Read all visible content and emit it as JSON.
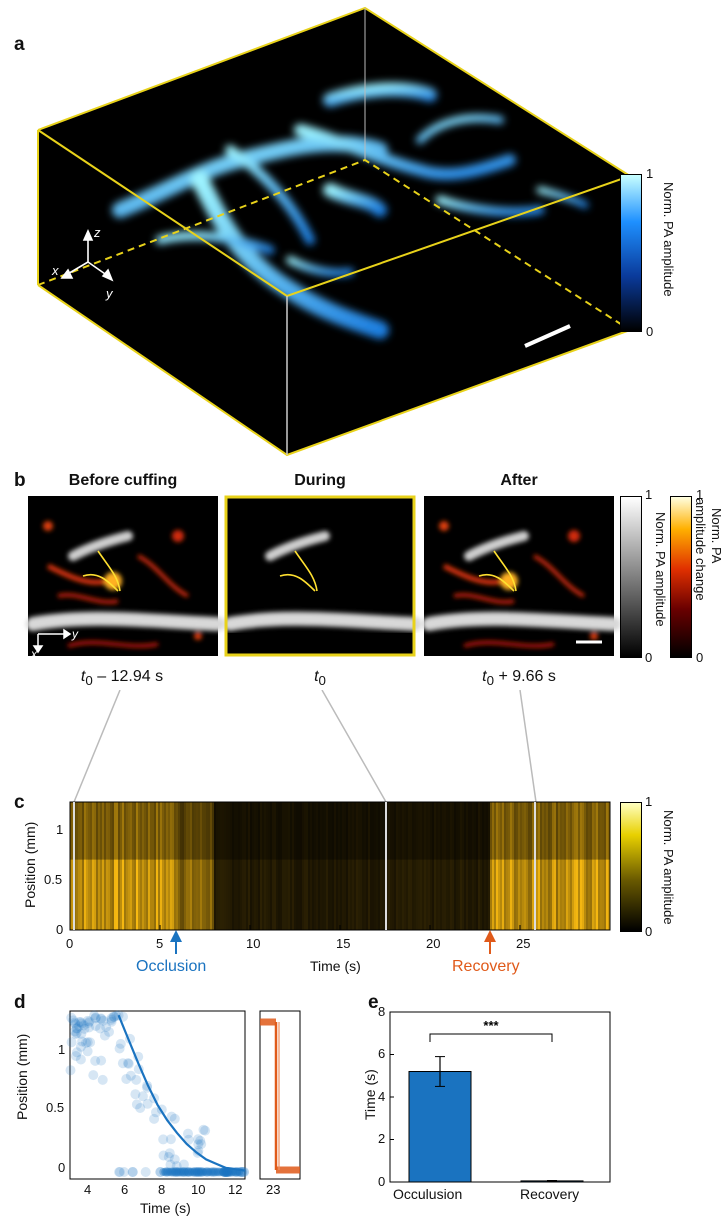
{
  "panels": {
    "a": "a",
    "b": "b",
    "c": "c",
    "d": "d",
    "e": "e"
  },
  "panel_a": {
    "axes": {
      "z": "z",
      "x": "x",
      "y": "y"
    },
    "colorbar": {
      "max": "1",
      "min": "0",
      "label": "Norm. PA amplitude",
      "colors": [
        "#000000",
        "#0a3a9a",
        "#1e90ff",
        "#c8ffff"
      ]
    },
    "box_color": "#e8d21a"
  },
  "panel_b": {
    "titles": [
      "Before cuffing",
      "During",
      "After"
    ],
    "time_labels": [
      {
        "t": "t",
        "sub": "0",
        "rest": " – 12.94 s"
      },
      {
        "t": "t",
        "sub": "0",
        "rest": ""
      },
      {
        "t": "t",
        "sub": "0",
        "rest": " + 9.66 s"
      }
    ],
    "axes": {
      "x": "x",
      "y": "y"
    },
    "colorbar_gray": {
      "max": "1",
      "min": "0",
      "label": "Norm. PA amplitude"
    },
    "colorbar_hot": {
      "max": "1",
      "min": "0",
      "label_line1": "Norm. PA",
      "label_line2": "amplitude change"
    }
  },
  "panel_c": {
    "ylabel": "Position (mm)",
    "xlabel": "Time (s)",
    "yticks": [
      "1",
      "0.5",
      "0"
    ],
    "xticks": [
      "0",
      "5",
      "10",
      "15",
      "20",
      "25"
    ],
    "colorbar": {
      "max": "1",
      "min": "0",
      "label": "Norm. PA amplitude"
    },
    "annotations": [
      {
        "label": "Occlusion",
        "color": "#1a73c0"
      },
      {
        "label": "Recovery",
        "color": "#e05a1a"
      }
    ]
  },
  "chart_data": [
    {
      "type": "heatmap",
      "description": "Norm. PA amplitude vs time and position",
      "xlabel": "Time (s)",
      "ylabel": "Position (mm)",
      "xlim": [
        0,
        30
      ],
      "ylim": [
        0,
        1.1
      ],
      "occlusion_time": 5.3,
      "recovery_time": 23.3,
      "intensity_segments": [
        {
          "t0": 0,
          "t1": 8,
          "level": 0.85
        },
        {
          "t0": 8,
          "t1": 23.3,
          "level": 0.15
        },
        {
          "t0": 23.3,
          "t1": 30,
          "level": 0.85
        }
      ]
    },
    {
      "type": "scatter",
      "xlabel": "Time (s)",
      "ylabel": "Position (mm)",
      "xlim": [
        3,
        12
      ],
      "ylim": [
        -0.05,
        1.15
      ],
      "xticks": [
        "4",
        "6",
        "8",
        "10",
        "12"
      ],
      "yticks": [
        "1",
        "0.5",
        "0"
      ],
      "series": [
        {
          "color": "#1a73c0",
          "fit": [
            [
              5.5,
              1.12
            ],
            [
              6,
              0.95
            ],
            [
              6.5,
              0.78
            ],
            [
              7,
              0.62
            ],
            [
              7.5,
              0.48
            ],
            [
              8,
              0.37
            ],
            [
              8.5,
              0.28
            ],
            [
              9,
              0.2
            ],
            [
              9.5,
              0.14
            ],
            [
              10,
              0.09
            ],
            [
              10.5,
              0.06
            ],
            [
              11,
              0.03
            ],
            [
              12,
              0.01
            ]
          ]
        }
      ],
      "inset": {
        "xticks": [
          "23"
        ],
        "color": "#e05a1a"
      }
    },
    {
      "type": "bar",
      "categories": [
        "Occulusion",
        "Recovery"
      ],
      "values": [
        5.2,
        0.05
      ],
      "errors": [
        0.7,
        0.02
      ],
      "ylabel": "Time (s)",
      "ylim": [
        0,
        8
      ],
      "yticks": [
        "8",
        "6",
        "4",
        "2",
        "0"
      ],
      "significance": "***",
      "color": "#1a73c0"
    }
  ]
}
